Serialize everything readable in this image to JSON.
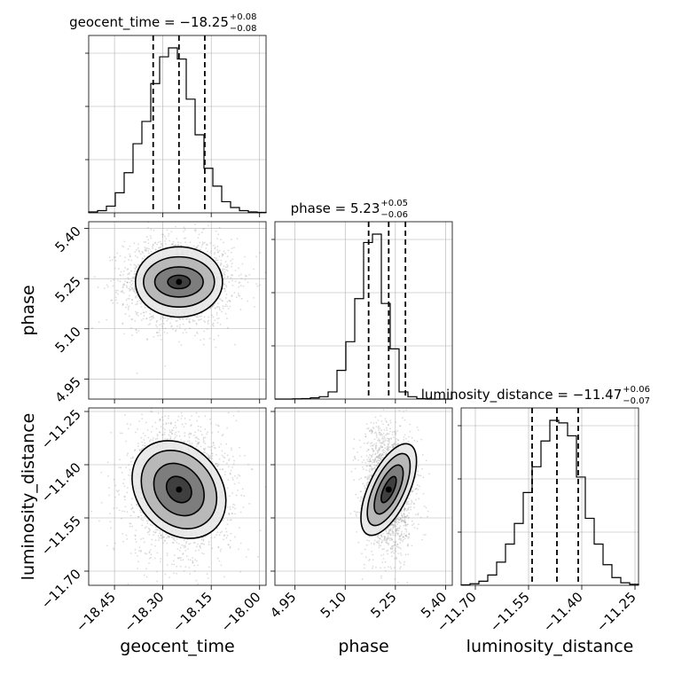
{
  "chart_data": {
    "type": "corner",
    "parameters": [
      "geocent_time",
      "phase",
      "luminosity_distance"
    ],
    "grid": true,
    "axis_labels": {
      "x": [
        "geocent_time",
        "phase",
        "luminosity_distance"
      ],
      "y": [
        "phase",
        "luminosity_distance"
      ]
    },
    "summaries": [
      {
        "name": "geocent_time",
        "label": "geocent_time = −18.25",
        "median": -18.25,
        "plus": "+0.08",
        "minus": "−0.08"
      },
      {
        "name": "phase",
        "label": "phase = 5.23",
        "median": 5.23,
        "plus": "+0.05",
        "minus": "−0.06"
      },
      {
        "name": "luminosity_distance",
        "label": "luminosity_distance = −11.47",
        "median": -11.47,
        "plus": "+0.06",
        "minus": "−0.07"
      }
    ],
    "ranges": {
      "geocent_time": [
        -18.53,
        -17.98
      ],
      "phase": [
        4.89,
        5.42
      ],
      "luminosity_distance": [
        -11.74,
        -11.24
      ]
    },
    "ticks": {
      "geocent_time": [
        -18.45,
        -18.3,
        -18.15,
        -18.0
      ],
      "phase": [
        4.95,
        5.1,
        5.25,
        5.4
      ],
      "luminosity_distance": [
        -11.7,
        -11.55,
        -11.4,
        -11.25
      ]
    },
    "tick_labels": {
      "geocent_time": [
        "−18.45",
        "−18.30",
        "−18.15",
        "−18.00"
      ],
      "phase": [
        "4.95",
        "5.10",
        "5.25",
        "5.40"
      ],
      "luminosity_distance": [
        "−11.70",
        "−11.55",
        "−11.40",
        "−11.25"
      ]
    },
    "quantile_lines": {
      "geocent_time": [
        -18.33,
        -18.25,
        -18.17
      ],
      "phase": [
        5.17,
        5.23,
        5.28
      ],
      "luminosity_distance": [
        -11.54,
        -11.47,
        -11.41
      ]
    },
    "histograms": {
      "geocent_time": {
        "bin_edges": [
          -18.53,
          -18.5025,
          -18.475,
          -18.4475,
          -18.42,
          -18.3925,
          -18.365,
          -18.3375,
          -18.31,
          -18.2825,
          -18.255,
          -18.2275,
          -18.2,
          -18.1725,
          -18.145,
          -18.1175,
          -18.09,
          -18.0625,
          -18.035,
          -18.0075,
          -17.98
        ],
        "counts": [
          2,
          5,
          15,
          45,
          90,
          155,
          205,
          290,
          350,
          370,
          345,
          255,
          175,
          100,
          60,
          25,
          12,
          5,
          2,
          1
        ]
      },
      "phase": {
        "bin_edges": [
          4.89,
          4.9165,
          4.943,
          4.9695,
          4.996,
          5.0225,
          5.049,
          5.0755,
          5.102,
          5.1285,
          5.155,
          5.1815,
          5.208,
          5.2345,
          5.261,
          5.2875,
          5.314,
          5.3405,
          5.367,
          5.3935,
          5.42
        ],
        "counts": [
          0,
          0,
          1,
          2,
          5,
          10,
          30,
          120,
          240,
          420,
          655,
          690,
          400,
          210,
          30,
          10,
          2,
          0,
          0,
          0
        ]
      },
      "luminosity_distance": {
        "bin_edges": [
          -11.74,
          -11.715,
          -11.69,
          -11.665,
          -11.64,
          -11.615,
          -11.59,
          -11.565,
          -11.54,
          -11.515,
          -11.49,
          -11.465,
          -11.44,
          -11.415,
          -11.39,
          -11.365,
          -11.34,
          -11.315,
          -11.29,
          -11.265,
          -11.24
        ],
        "counts": [
          1,
          3,
          8,
          20,
          45,
          80,
          120,
          180,
          230,
          280,
          320,
          315,
          290,
          210,
          130,
          80,
          40,
          15,
          5,
          2
        ]
      }
    },
    "pair_contours": [
      {
        "x": "geocent_time",
        "y": "phase",
        "center": [
          -18.25,
          5.24
        ],
        "rx": [
          0.035,
          0.075,
          0.11,
          0.135
        ],
        "ry": [
          0.02,
          0.045,
          0.075,
          0.105
        ],
        "tilt_deg": 0
      },
      {
        "x": "geocent_time",
        "y": "luminosity_distance",
        "center": [
          -18.25,
          -11.47
        ],
        "rx": [
          0.035,
          0.07,
          0.105,
          0.13
        ],
        "ry": [
          0.04,
          0.08,
          0.12,
          0.15
        ],
        "tilt_deg": 40
      },
      {
        "x": "phase",
        "y": "luminosity_distance",
        "center": [
          5.23,
          -11.47
        ],
        "rx": [
          0.015,
          0.03,
          0.045,
          0.06
        ],
        "ry": [
          0.04,
          0.075,
          0.11,
          0.14
        ],
        "tilt_deg": -25
      }
    ],
    "colors": {
      "hist": "#000000",
      "contour": "#000000",
      "scatter": "#9a9a9a",
      "grid": "#b0b0b0",
      "density": "#000000"
    }
  }
}
